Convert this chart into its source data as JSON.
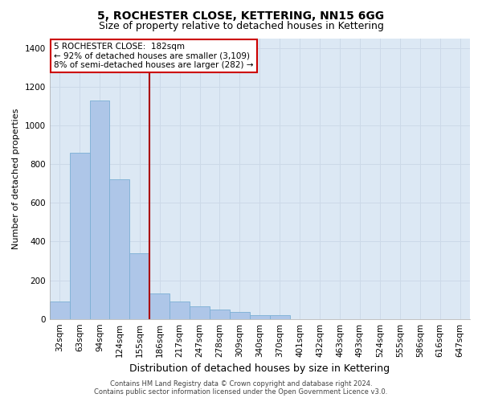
{
  "title": "5, ROCHESTER CLOSE, KETTERING, NN15 6GG",
  "subtitle": "Size of property relative to detached houses in Kettering",
  "xlabel": "Distribution of detached houses by size in Kettering",
  "ylabel": "Number of detached properties",
  "categories": [
    "32sqm",
    "63sqm",
    "94sqm",
    "124sqm",
    "155sqm",
    "186sqm",
    "217sqm",
    "247sqm",
    "278sqm",
    "309sqm",
    "340sqm",
    "370sqm",
    "401sqm",
    "432sqm",
    "463sqm",
    "493sqm",
    "524sqm",
    "555sqm",
    "586sqm",
    "616sqm",
    "647sqm"
  ],
  "values": [
    90,
    860,
    1130,
    720,
    340,
    130,
    90,
    65,
    50,
    35,
    20,
    20,
    0,
    0,
    0,
    0,
    0,
    0,
    0,
    0,
    0
  ],
  "bar_color": "#aec6e8",
  "bar_edge_color": "#7bafd4",
  "grid_color": "#ccd9e8",
  "background_color": "#dce8f4",
  "vline_color": "#aa0000",
  "annotation_text": "5 ROCHESTER CLOSE:  182sqm\n← 92% of detached houses are smaller (3,109)\n8% of semi-detached houses are larger (282) →",
  "annotation_box_color": "#ffffff",
  "annotation_border_color": "#cc0000",
  "footnote": "Contains HM Land Registry data © Crown copyright and database right 2024.\nContains public sector information licensed under the Open Government Licence v3.0.",
  "ylim": [
    0,
    1450
  ],
  "yticks": [
    0,
    200,
    400,
    600,
    800,
    1000,
    1200,
    1400
  ],
  "title_fontsize": 10,
  "subtitle_fontsize": 9,
  "tick_fontsize": 7.5,
  "ylabel_fontsize": 8,
  "xlabel_fontsize": 9,
  "annotation_fontsize": 7.5,
  "footnote_fontsize": 6
}
